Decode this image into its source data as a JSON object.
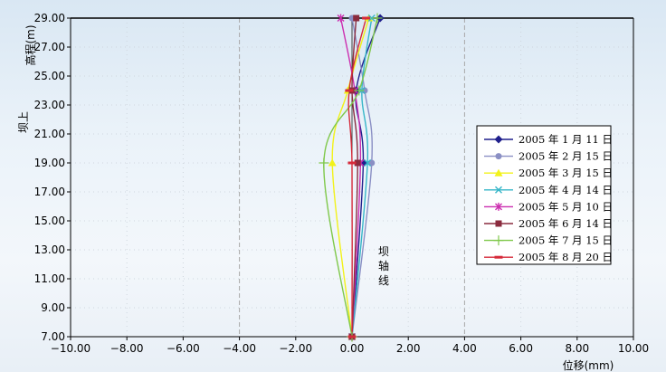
{
  "chart_data": {
    "type": "line",
    "xlabel": "位移(mm)",
    "ylabel": "高程(m)",
    "ylabel_side": "坝上",
    "annotation": [
      "坝",
      "轴",
      "线"
    ],
    "xlim": [
      -10,
      10
    ],
    "ylim": [
      7,
      29
    ],
    "xticks": [
      "−10.00",
      "−8.00",
      "−6.00",
      "−4.00",
      "−2.00",
      "0.00",
      "2.00",
      "4.00",
      "6.00",
      "8.00",
      "10.00"
    ],
    "xtick_values": [
      -10,
      -8,
      -6,
      -4,
      -2,
      0,
      2,
      4,
      6,
      8,
      10
    ],
    "yticks": [
      "7.00",
      "9.00",
      "11.00",
      "13.00",
      "15.00",
      "17.00",
      "19.00",
      "21.00",
      "23.00",
      "25.00",
      "27.00",
      "29.00"
    ],
    "ytick_values": [
      7,
      9,
      11,
      13,
      15,
      17,
      19,
      21,
      23,
      25,
      27,
      29
    ],
    "grid": "dashed, light",
    "legend_position": "right",
    "series": [
      {
        "name": "2005 年 1 月 11 日",
        "color": "#1f1f8c",
        "marker": "diamond",
        "points": [
          [
            1.0,
            29
          ],
          [
            0.15,
            24
          ],
          [
            0.4,
            19
          ],
          [
            0.0,
            7
          ]
        ]
      },
      {
        "name": "2005 年 2 月 15 日",
        "color": "#8a8fc4",
        "marker": "circle",
        "points": [
          [
            0.0,
            29
          ],
          [
            0.45,
            24
          ],
          [
            0.7,
            19
          ],
          [
            0.0,
            7
          ]
        ]
      },
      {
        "name": "2005 年 3 月 15 日",
        "color": "#f2f21a",
        "marker": "triangle",
        "points": [
          [
            0.6,
            29
          ],
          [
            -0.15,
            24
          ],
          [
            -0.7,
            19
          ],
          [
            0.0,
            7
          ]
        ]
      },
      {
        "name": "2005 年 4 月 14 日",
        "color": "#36b6c8",
        "marker": "x",
        "points": [
          [
            0.7,
            29
          ],
          [
            0.35,
            24
          ],
          [
            0.55,
            19
          ],
          [
            0.0,
            7
          ]
        ]
      },
      {
        "name": "2005 年 5 月 10 日",
        "color": "#cc2fb0",
        "marker": "star",
        "points": [
          [
            -0.4,
            29
          ],
          [
            0.1,
            24
          ],
          [
            0.3,
            19
          ],
          [
            0.0,
            7
          ]
        ]
      },
      {
        "name": "2005 年 6 月 14 日",
        "color": "#8a2b3e",
        "marker": "square",
        "points": [
          [
            0.15,
            29
          ],
          [
            0.0,
            24
          ],
          [
            0.2,
            19
          ],
          [
            0.0,
            7
          ]
        ]
      },
      {
        "name": "2005 年 7 月 15 日",
        "color": "#7fc84a",
        "marker": "plus",
        "points": [
          [
            0.9,
            29
          ],
          [
            0.25,
            24
          ],
          [
            -1.0,
            19
          ],
          [
            0.0,
            7
          ]
        ]
      },
      {
        "name": "2005 年 8 月 20 日",
        "color": "#d62a3a",
        "marker": "dash",
        "points": [
          [
            0.5,
            29
          ],
          [
            -0.1,
            24
          ],
          [
            0.0,
            19
          ],
          [
            0.0,
            7
          ]
        ]
      }
    ]
  }
}
